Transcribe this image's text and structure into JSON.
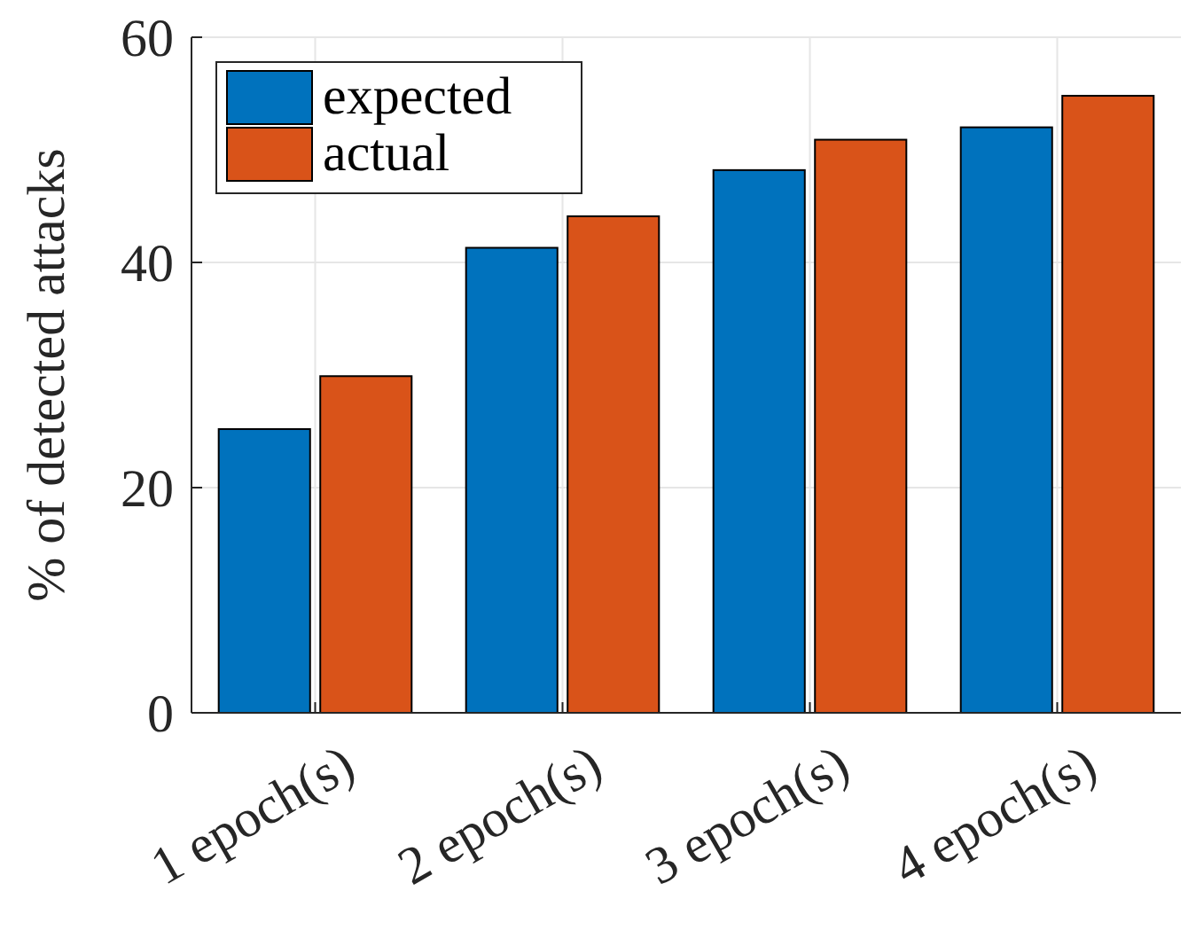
{
  "chart_data": {
    "type": "bar",
    "ylabel": "% of detected attacks",
    "categories": [
      "1 epoch(s)",
      "2 epoch(s)",
      "3 epoch(s)",
      "4 epoch(s)"
    ],
    "series": [
      {
        "name": "expected",
        "color": "#0072bd",
        "values": [
          25.2,
          41.3,
          48.2,
          52.0
        ]
      },
      {
        "name": "actual",
        "color": "#d95319",
        "values": [
          29.9,
          44.1,
          50.9,
          54.8
        ]
      }
    ],
    "ylim": [
      0,
      60
    ],
    "yticks": [
      0,
      20,
      40,
      60
    ],
    "grid": true,
    "legend": "top left"
  }
}
